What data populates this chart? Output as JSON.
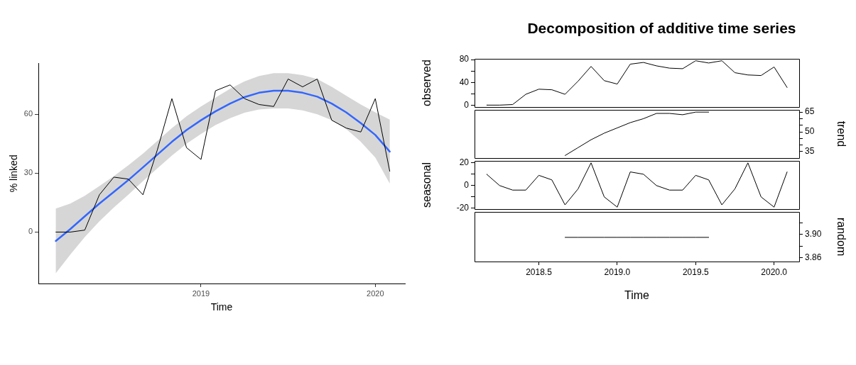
{
  "chart_data": [
    {
      "type": "line",
      "xlabel": "Time",
      "ylabel": "% linked",
      "xlim": [
        2018.067,
        2020.17
      ],
      "xticks": [
        2019,
        2020
      ],
      "ylim": [
        -26.2,
        85.9
      ],
      "yticks": [
        0,
        30,
        60
      ],
      "grid": false,
      "legend": false,
      "marker": "none",
      "x": [
        2018.167,
        2018.25,
        2018.333,
        2018.417,
        2018.5,
        2018.583,
        2018.667,
        2018.75,
        2018.833,
        2018.917,
        2019,
        2019.083,
        2019.167,
        2019.25,
        2019.333,
        2019.417,
        2019.5,
        2019.583,
        2019.667,
        2019.75,
        2019.833,
        2019.917,
        2020,
        2020.083
      ],
      "series": [
        {
          "color": "#000000",
          "values": [
            0,
            0,
            1,
            19,
            28,
            27,
            19,
            42,
            68,
            43,
            37,
            72,
            75,
            68,
            65,
            64,
            78,
            74,
            78,
            57,
            53,
            51,
            68,
            31
          ]
        },
        {
          "color": "#3366ff",
          "values": [
            -4.5,
            1.5,
            8,
            14.5,
            20.5,
            26.5,
            33,
            39.5,
            46,
            52,
            57,
            61.5,
            65.5,
            68.8,
            71,
            72,
            72,
            71,
            69,
            65.5,
            61,
            55.5,
            49.5,
            41
          ],
          "lower": [
            -21,
            -11.5,
            -2.5,
            5.5,
            12.5,
            19,
            26,
            32.5,
            39,
            45,
            50,
            54.5,
            58,
            60.8,
            62.5,
            63,
            63,
            62,
            60,
            57,
            52.5,
            46,
            38,
            24.7
          ],
          "upper": [
            12,
            14.5,
            18.5,
            23.5,
            28.5,
            34,
            40,
            46.5,
            53,
            59,
            64,
            68.5,
            73,
            76.8,
            79.5,
            81,
            81,
            80,
            78,
            74,
            69.5,
            65,
            61,
            57.3
          ]
        }
      ]
    },
    {
      "type": "line",
      "title": "Decomposition of additive time series",
      "ylabel": "observed",
      "xlim": [
        2018.09,
        2020.16
      ],
      "ylim": [
        -3.1,
        81.1
      ],
      "yticks": [
        0,
        {
          "value": 20,
          "label": null
        },
        40,
        {
          "value": 60,
          "label": null
        },
        80
      ],
      "tick_labels": "y",
      "grid": false,
      "legend": false,
      "marker": "none",
      "x": [
        2018.167,
        2018.25,
        2018.333,
        2018.417,
        2018.5,
        2018.583,
        2018.667,
        2018.75,
        2018.833,
        2018.917,
        2019,
        2019.083,
        2019.167,
        2019.25,
        2019.333,
        2019.417,
        2019.5,
        2019.583,
        2019.667,
        2019.75,
        2019.833,
        2019.917,
        2020,
        2020.083
      ],
      "series": [
        {
          "color": "#000000",
          "values": [
            0,
            0,
            1,
            19,
            28,
            27,
            19,
            42,
            68,
            43,
            37,
            72,
            75,
            69,
            65,
            64,
            78,
            74,
            78,
            57,
            53,
            52,
            67,
            31
          ]
        }
      ]
    },
    {
      "type": "line",
      "y2label": "trend",
      "xlim": [
        2018.09,
        2020.16
      ],
      "y2lim": [
        30.2,
        66.6
      ],
      "y2ticks": [
        35,
        {
          "value": 40,
          "label": null
        },
        {
          "value": 45,
          "label": null
        },
        50,
        {
          "value": 55,
          "label": null
        },
        {
          "value": 60,
          "label": null
        },
        65
      ],
      "tick_labels": "y2",
      "grid": false,
      "legend": false,
      "marker": "none",
      "x": [
        2018.667,
        2018.75,
        2018.833,
        2018.917,
        2019,
        2019.083,
        2019.167,
        2019.25,
        2019.333,
        2019.417,
        2019.5,
        2019.583
      ],
      "series": [
        {
          "color": "#000000",
          "axis": "y2",
          "values": [
            32,
            38,
            44,
            49,
            53,
            57,
            60,
            64,
            64,
            63,
            65,
            65
          ]
        }
      ]
    },
    {
      "type": "line",
      "ylabel": "seasonal",
      "xlim": [
        2018.09,
        2020.16
      ],
      "ylim": [
        -20.6,
        21.6
      ],
      "yticks": [
        -20,
        {
          "value": -10,
          "label": null
        },
        0,
        {
          "value": 10,
          "label": null
        },
        20
      ],
      "tick_labels": "y",
      "grid": false,
      "legend": false,
      "marker": "none",
      "x": [
        2018.167,
        2018.25,
        2018.333,
        2018.417,
        2018.5,
        2018.583,
        2018.667,
        2018.75,
        2018.833,
        2018.917,
        2019,
        2019.083,
        2019.167,
        2019.25,
        2019.333,
        2019.417,
        2019.5,
        2019.583,
        2019.667,
        2019.75,
        2019.833,
        2019.917,
        2020,
        2020.083
      ],
      "series": [
        {
          "color": "#000000",
          "values": [
            10,
            0,
            -4,
            -4,
            9,
            5,
            -17,
            -3,
            20,
            -10,
            -19,
            12,
            10,
            0,
            -4,
            -4,
            9,
            5,
            -17,
            -3,
            20,
            -10,
            -19,
            12
          ]
        }
      ]
    },
    {
      "type": "line",
      "xlabel": "Time",
      "y2label": "random",
      "xlim": [
        2018.09,
        2020.16
      ],
      "xticks": [
        {
          "value": 2018.5,
          "label": "2018.5"
        },
        {
          "value": 2019,
          "label": "2019.0"
        },
        {
          "value": 2019.5,
          "label": "2019.5"
        },
        {
          "value": 2020,
          "label": "2020.0"
        }
      ],
      "y2lim": [
        3.853,
        3.939
      ],
      "y2ticks": [
        3.86,
        {
          "value": 3.88,
          "label": null
        },
        {
          "value": 3.9,
          "label": "3.90"
        },
        {
          "value": 3.92,
          "label": null
        }
      ],
      "grid": false,
      "legend": false,
      "marker": "none",
      "x": [
        2018.667,
        2018.75,
        2018.833,
        2018.917,
        2019,
        2019.083,
        2019.167,
        2019.25,
        2019.333,
        2019.417,
        2019.5,
        2019.583
      ],
      "series": [
        {
          "color": "#000000",
          "axis": "y2",
          "values": [
            3.895,
            3.895,
            3.895,
            3.895,
            3.895,
            3.895,
            3.895,
            3.895,
            3.895,
            3.895,
            3.895,
            3.895
          ]
        }
      ]
    }
  ]
}
